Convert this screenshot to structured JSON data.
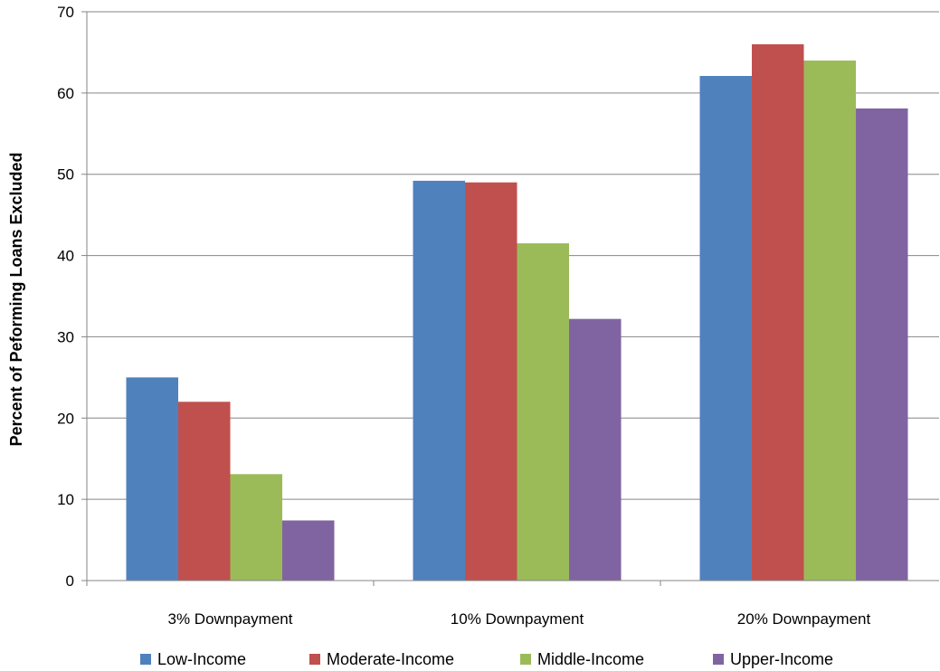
{
  "chart_data": {
    "type": "bar",
    "title": "",
    "xlabel": "",
    "ylabel": "Percent of Peforming Loans Excluded",
    "ylim": [
      0,
      70
    ],
    "yticks": [
      0,
      10,
      20,
      30,
      40,
      50,
      60,
      70
    ],
    "grid": true,
    "legend_position": "bottom",
    "categories": [
      "3% Downpayment",
      "10% Downpayment",
      "20% Downpayment"
    ],
    "series": [
      {
        "name": "Low-Income",
        "color": "#4F81BD",
        "values": [
          25,
          49.2,
          62.1
        ]
      },
      {
        "name": "Moderate-Income",
        "color": "#C0504D",
        "values": [
          22,
          49,
          66
        ]
      },
      {
        "name": "Middle-Income",
        "color": "#9BBB59",
        "values": [
          13.1,
          41.5,
          64
        ]
      },
      {
        "name": "Upper-Income",
        "color": "#8064A2",
        "values": [
          7.4,
          32.2,
          58.1
        ]
      }
    ]
  }
}
